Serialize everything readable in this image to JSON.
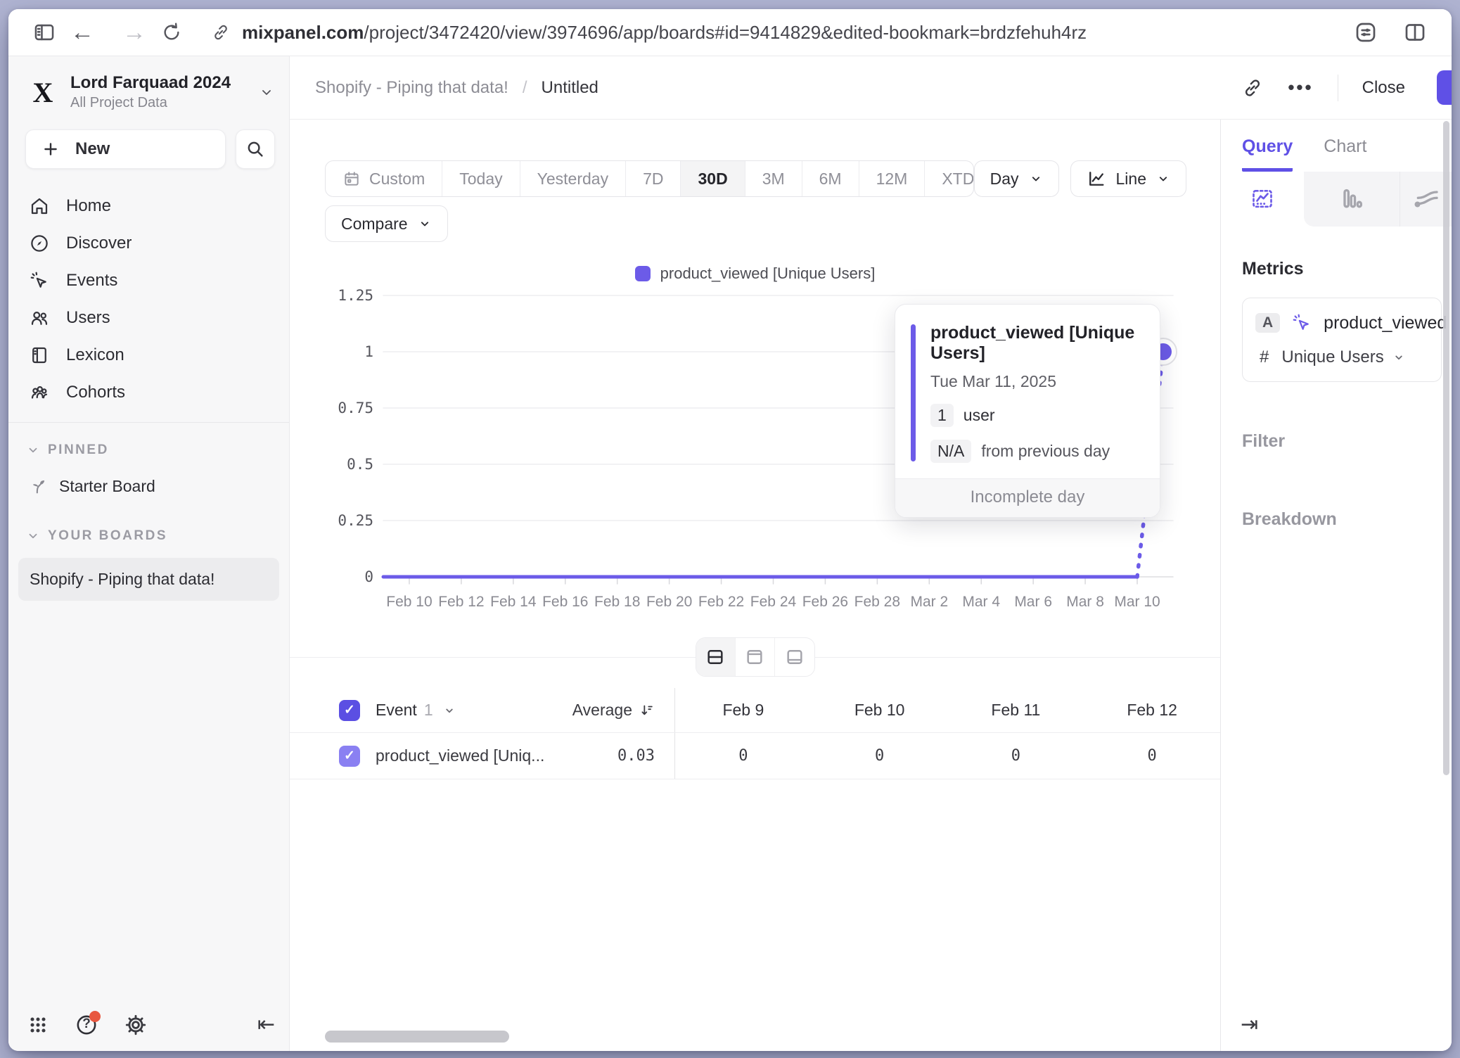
{
  "browser": {
    "url_domain": "mixpanel.com",
    "url_path": "/project/3472420/view/3974696/app/boards#id=9414829&edited-bookmark=brdzfehuh4rz"
  },
  "sidebar": {
    "project": "Lord Farquaad 2024",
    "subtitle": "All Project Data",
    "new_label": "New",
    "nav": [
      {
        "label": "Home"
      },
      {
        "label": "Discover"
      },
      {
        "label": "Events"
      },
      {
        "label": "Users"
      },
      {
        "label": "Lexicon"
      },
      {
        "label": "Cohorts"
      }
    ],
    "pinned_label": "PINNED",
    "starter_board": "Starter Board",
    "your_boards_label": "YOUR BOARDS",
    "board": "Shopify - Piping that data!"
  },
  "header": {
    "board": "Shopify - Piping that data!",
    "sep": "/",
    "page": "Untitled",
    "more_label": "•••",
    "close_label": "Close"
  },
  "controls": {
    "ranges": [
      {
        "label": "Custom"
      },
      {
        "label": "Today"
      },
      {
        "label": "Yesterday"
      },
      {
        "label": "7D"
      },
      {
        "label": "30D"
      },
      {
        "label": "3M"
      },
      {
        "label": "6M"
      },
      {
        "label": "12M"
      },
      {
        "label": "XTD"
      }
    ],
    "active_range": "30D",
    "compare_label": "Compare",
    "granularity_label": "Day",
    "chart_type_label": "Line"
  },
  "chart_data": {
    "type": "line",
    "title": "",
    "legend_position": "top",
    "grid": true,
    "ylim": [
      0,
      1.25
    ],
    "y_ticks": [
      0,
      0.25,
      0.5,
      0.75,
      1,
      1.25
    ],
    "x_tick_indices": [
      1,
      3,
      5,
      7,
      9,
      11,
      13,
      15,
      17,
      19,
      21,
      23,
      25,
      27,
      29
    ],
    "incomplete_last_point": true,
    "series": [
      {
        "name": "product_viewed [Unique Users]",
        "color": "#6c5be8",
        "x": [
          "Feb 9",
          "Feb 10",
          "Feb 11",
          "Feb 12",
          "Feb 13",
          "Feb 14",
          "Feb 15",
          "Feb 16",
          "Feb 17",
          "Feb 18",
          "Feb 19",
          "Feb 20",
          "Feb 21",
          "Feb 22",
          "Feb 23",
          "Feb 24",
          "Feb 25",
          "Feb 26",
          "Feb 27",
          "Feb 28",
          "Mar 1",
          "Mar 2",
          "Mar 3",
          "Mar 4",
          "Mar 5",
          "Mar 6",
          "Mar 7",
          "Mar 8",
          "Mar 9",
          "Mar 10",
          "Mar 11"
        ],
        "values": [
          0,
          0,
          0,
          0,
          0,
          0,
          0,
          0,
          0,
          0,
          0,
          0,
          0,
          0,
          0,
          0,
          0,
          0,
          0,
          0,
          0,
          0,
          0,
          0,
          0,
          0,
          0,
          0,
          0,
          0,
          1
        ]
      }
    ]
  },
  "tooltip": {
    "title": "product_viewed [Unique Users]",
    "date": "Tue Mar 11, 2025",
    "value": "1",
    "value_label": "user",
    "delta": "N/A",
    "delta_label": "from previous day",
    "footer": "Incomplete day"
  },
  "table": {
    "event_label": "Event",
    "event_count": "1",
    "average_label": "Average",
    "columns": [
      "Feb 9",
      "Feb 10",
      "Feb 11",
      "Feb 12"
    ],
    "rows": [
      {
        "name": "product_viewed [Uniq...",
        "average": "0.03",
        "values": [
          "0",
          "0",
          "0",
          "0"
        ]
      }
    ]
  },
  "qpanel": {
    "tab_query": "Query",
    "tab_chart": "Chart",
    "metrics_label": "Metrics",
    "metric": {
      "letter": "A",
      "name": "product_viewed",
      "agg_prefix": "#",
      "agg": "Unique Users"
    },
    "filter_label": "Filter",
    "breakdown_label": "Breakdown"
  },
  "icons": {
    "check": "✓",
    "help_glyph": "?",
    "collapse_left": "⇤",
    "expand_right": "⇥",
    "back_arrow": "←",
    "forward_arrow": "→"
  },
  "colors": {
    "accent": "#6c5be8",
    "accent_light": "#8a80f2",
    "save_button": "#5f50e6"
  }
}
